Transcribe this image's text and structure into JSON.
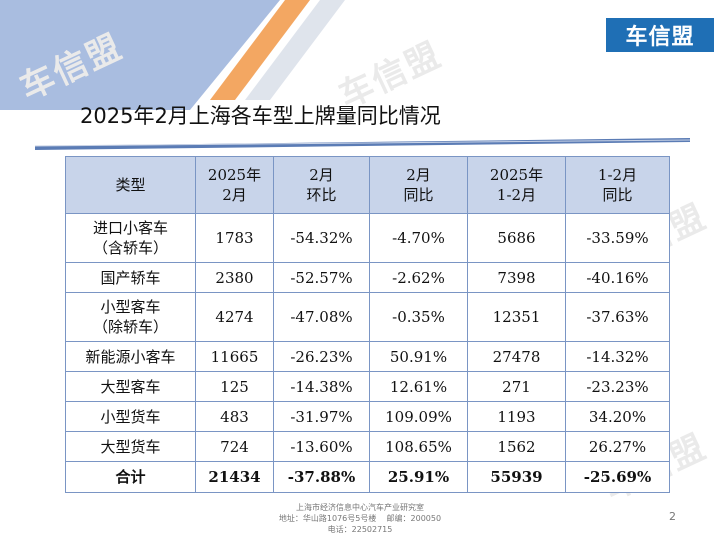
{
  "logo": {
    "text": "车信盟"
  },
  "watermark": {
    "text": "车信盟"
  },
  "title": "2025年2月上海各车型上牌量同比情况",
  "table": {
    "headers": [
      "类型",
      "2025年\n2月",
      "2月\n环比",
      "2月\n同比",
      "2025年\n1-2月",
      "1-2月\n同比"
    ],
    "rows": [
      [
        "进口小客车\n（含轿车）",
        "1783",
        "-54.32%",
        "-4.70%",
        "5686",
        "-33.59%"
      ],
      [
        "国产轿车",
        "2380",
        "-52.57%",
        "-2.62%",
        "7398",
        "-40.16%"
      ],
      [
        "小型客车\n（除轿车）",
        "4274",
        "-47.08%",
        "-0.35%",
        "12351",
        "-37.63%"
      ],
      [
        "新能源小客车",
        "11665",
        "-26.23%",
        "50.91%",
        "27478",
        "-14.32%"
      ],
      [
        "大型客车",
        "125",
        "-14.38%",
        "12.61%",
        "271",
        "-23.23%"
      ],
      [
        "小型货车",
        "483",
        "-31.97%",
        "109.09%",
        "1193",
        "34.20%"
      ],
      [
        "大型货车",
        "724",
        "-13.60%",
        "108.65%",
        "1562",
        "26.27%"
      ]
    ],
    "total": [
      "合计",
      "21434",
      "-37.88%",
      "25.91%",
      "55939",
      "-25.69%"
    ]
  },
  "footer": {
    "line1": "上海市经济信息中心汽车产业研究室",
    "line2": "地址：华山路1076号5号楼    邮编：200050",
    "line3": "电话：22502715"
  },
  "page_number": "2",
  "colors": {
    "accent_blue": "#1f6fb5",
    "header_fill": "#c8d4ea",
    "orange": "#f0a060",
    "stripe_blue": "#a9bde0"
  }
}
